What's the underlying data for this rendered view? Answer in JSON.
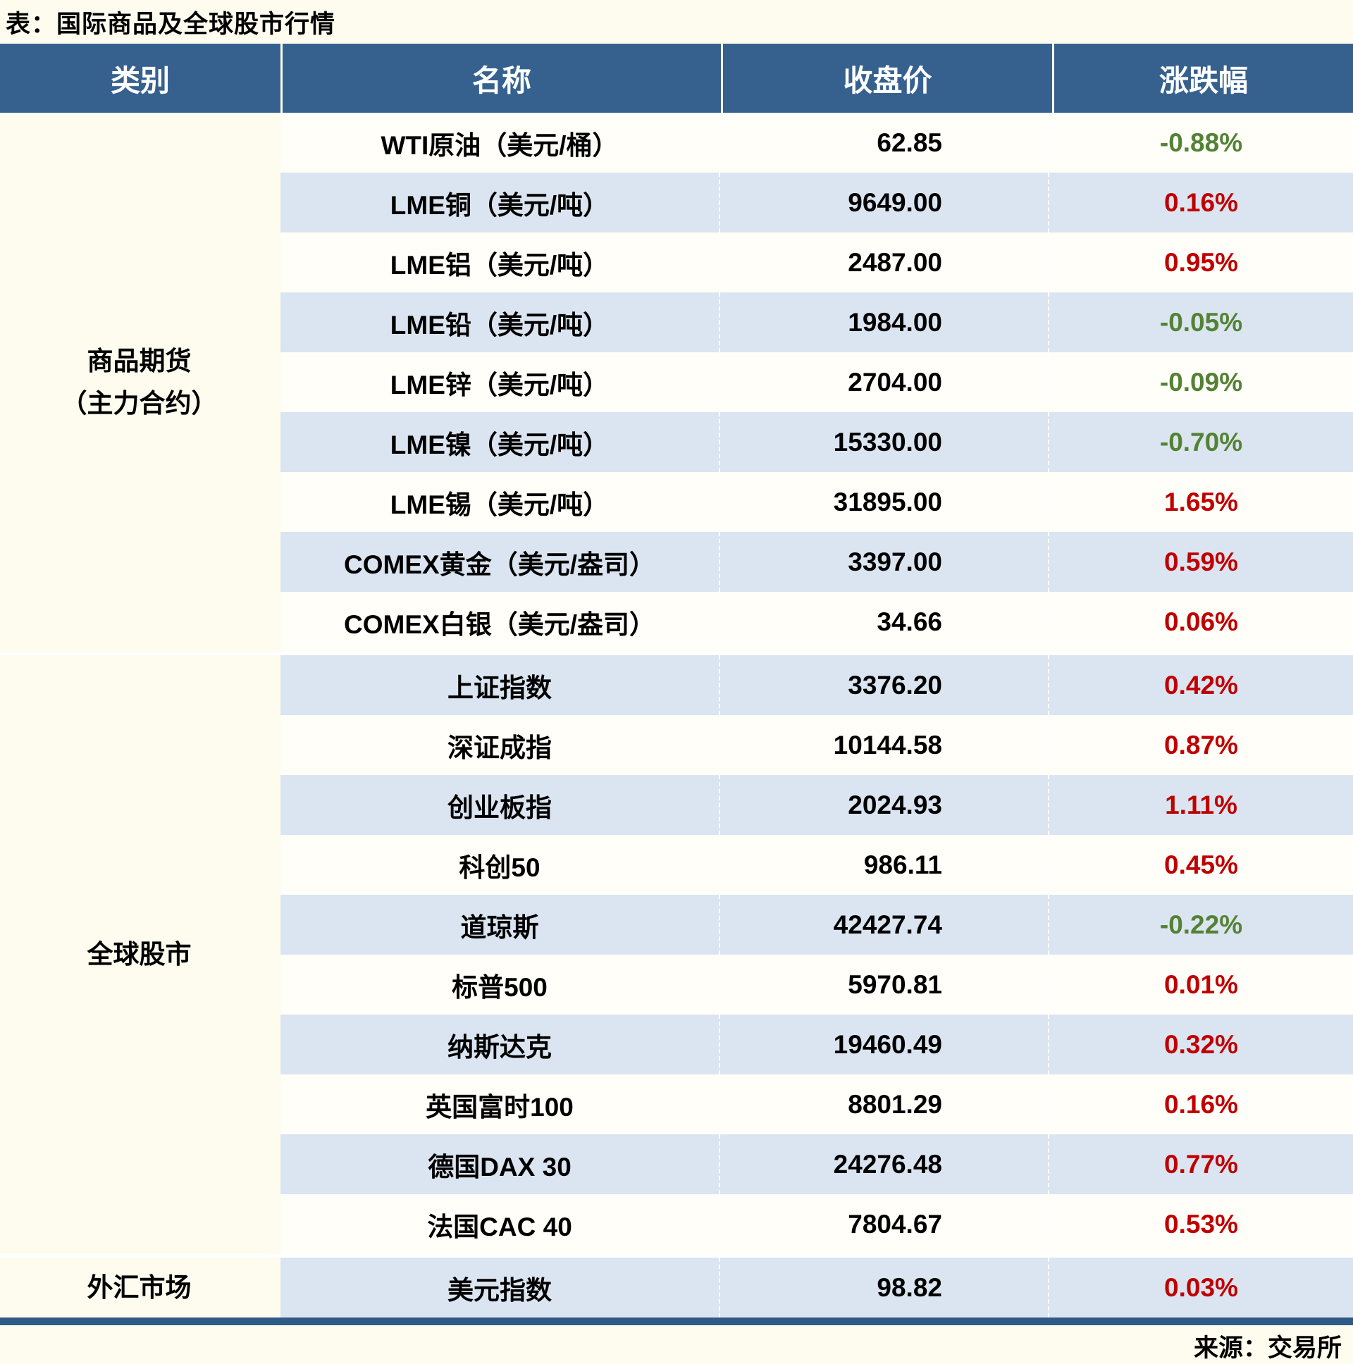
{
  "title": "表：国际商品及全球股市行情",
  "source": "来源：交易所",
  "colors": {
    "header_bg": "#36618f",
    "row_blue": "#dbe5f1",
    "row_white": "#fffef8",
    "page_bg": "#fdfcee",
    "bottom_border": "#2e5a87",
    "positive_color": "#c00000",
    "negative_color": "#548235",
    "header_text": "#ffffff"
  },
  "table": {
    "headers": [
      "类别",
      "名称",
      "收盘价",
      "涨跌幅"
    ],
    "groups": [
      {
        "category": "商品期货\n（主力合约）",
        "rows": [
          {
            "name": "WTI原油（美元/桶）",
            "close": "62.85",
            "change": "-0.88%"
          },
          {
            "name": "LME铜（美元/吨）",
            "close": "9649.00",
            "change": "0.16%"
          },
          {
            "name": "LME铝（美元/吨）",
            "close": "2487.00",
            "change": "0.95%"
          },
          {
            "name": "LME铅（美元/吨）",
            "close": "1984.00",
            "change": "-0.05%"
          },
          {
            "name": "LME锌（美元/吨）",
            "close": "2704.00",
            "change": "-0.09%"
          },
          {
            "name": "LME镍（美元/吨）",
            "close": "15330.00",
            "change": "-0.70%"
          },
          {
            "name": "LME锡（美元/吨）",
            "close": "31895.00",
            "change": "1.65%"
          },
          {
            "name": "COMEX黄金（美元/盎司）",
            "close": "3397.00",
            "change": "0.59%"
          },
          {
            "name": "COMEX白银（美元/盎司）",
            "close": "34.66",
            "change": "0.06%"
          }
        ]
      },
      {
        "category": "全球股市",
        "rows": [
          {
            "name": "上证指数",
            "close": "3376.20",
            "change": "0.42%"
          },
          {
            "name": "深证成指",
            "close": "10144.58",
            "change": "0.87%"
          },
          {
            "name": "创业板指",
            "close": "2024.93",
            "change": "1.11%"
          },
          {
            "name": "科创50",
            "close": "986.11",
            "change": "0.45%"
          },
          {
            "name": "道琼斯",
            "close": "42427.74",
            "change": "-0.22%"
          },
          {
            "name": "标普500",
            "close": "5970.81",
            "change": "0.01%"
          },
          {
            "name": "纳斯达克",
            "close": "19460.49",
            "change": "0.32%"
          },
          {
            "name": "英国富时100",
            "close": "8801.29",
            "change": "0.16%"
          },
          {
            "name": "德国DAX 30",
            "close": "24276.48",
            "change": "0.77%"
          },
          {
            "name": "法国CAC 40",
            "close": "7804.67",
            "change": "0.53%"
          }
        ]
      },
      {
        "category": "外汇市场",
        "rows": [
          {
            "name": "美元指数",
            "close": "98.82",
            "change": "0.03%"
          }
        ]
      }
    ]
  },
  "chart_data": {
    "type": "table",
    "title": "表：国际商品及全球股市行情",
    "columns": [
      "类别",
      "名称",
      "收盘价",
      "涨跌幅"
    ],
    "rows": [
      [
        "商品期货（主力合约）",
        "WTI原油（美元/桶）",
        62.85,
        "-0.88%"
      ],
      [
        "商品期货（主力合约）",
        "LME铜（美元/吨）",
        9649.0,
        "0.16%"
      ],
      [
        "商品期货（主力合约）",
        "LME铝（美元/吨）",
        2487.0,
        "0.95%"
      ],
      [
        "商品期货（主力合约）",
        "LME铅（美元/吨）",
        1984.0,
        "-0.05%"
      ],
      [
        "商品期货（主力合约）",
        "LME锌（美元/吨）",
        2704.0,
        "-0.09%"
      ],
      [
        "商品期货（主力合约）",
        "LME镍（美元/吨）",
        15330.0,
        "-0.70%"
      ],
      [
        "商品期货（主力合约）",
        "LME锡（美元/吨）",
        31895.0,
        "1.65%"
      ],
      [
        "商品期货（主力合约）",
        "COMEX黄金（美元/盎司）",
        3397.0,
        "0.59%"
      ],
      [
        "商品期货（主力合约）",
        "COMEX白银（美元/盎司）",
        34.66,
        "0.06%"
      ],
      [
        "全球股市",
        "上证指数",
        3376.2,
        "0.42%"
      ],
      [
        "全球股市",
        "深证成指",
        10144.58,
        "0.87%"
      ],
      [
        "全球股市",
        "创业板指",
        2024.93,
        "1.11%"
      ],
      [
        "全球股市",
        "科创50",
        986.11,
        "0.45%"
      ],
      [
        "全球股市",
        "道琼斯",
        42427.74,
        "-0.22%"
      ],
      [
        "全球股市",
        "标普500",
        5970.81,
        "0.01%"
      ],
      [
        "全球股市",
        "纳斯达克",
        19460.49,
        "0.32%"
      ],
      [
        "全球股市",
        "英国富时100",
        8801.29,
        "0.16%"
      ],
      [
        "全球股市",
        "德国DAX 30",
        24276.48,
        "0.77%"
      ],
      [
        "全球股市",
        "法国CAC 40",
        7804.67,
        "0.53%"
      ],
      [
        "外汇市场",
        "美元指数",
        98.82,
        "0.03%"
      ]
    ],
    "notes": "正值红色，负值绿色；来源：交易所"
  }
}
